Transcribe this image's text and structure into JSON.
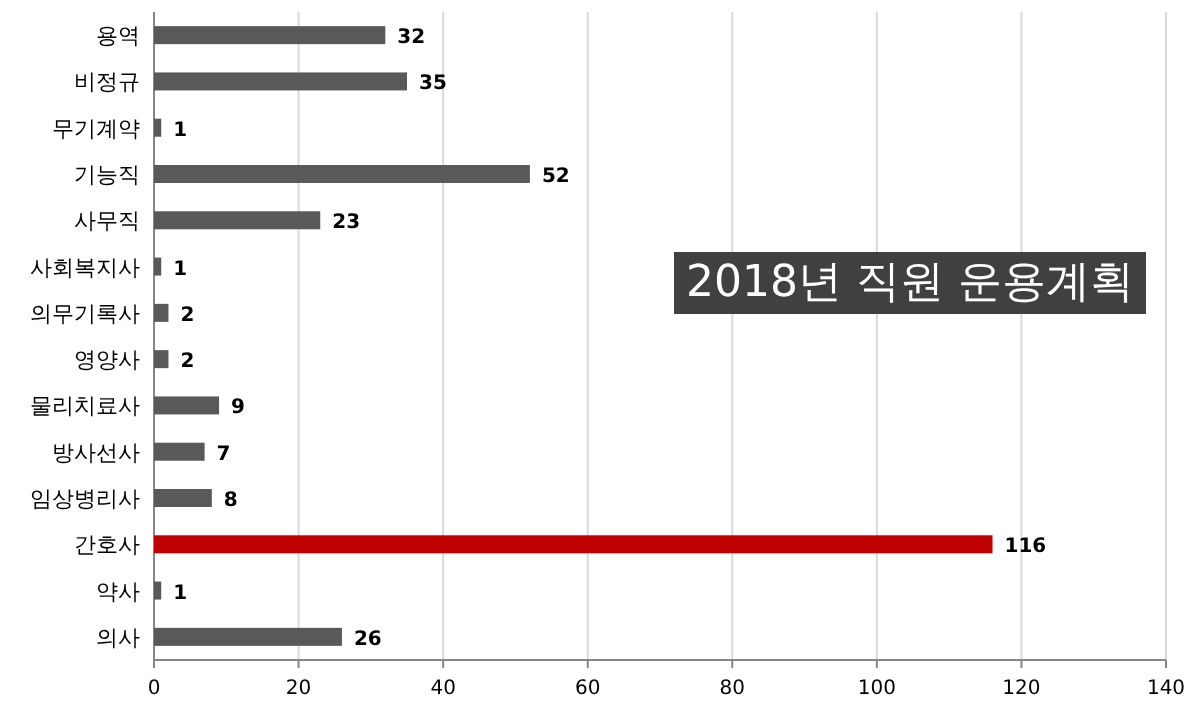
{
  "chart_data": {
    "type": "bar",
    "orientation": "horizontal",
    "title": "2018년 직원 운용계획",
    "categories": [
      "용역",
      "비정규",
      "무기계약",
      "기능직",
      "사무직",
      "사회복지사",
      "의무기록사",
      "영양사",
      "물리치료사",
      "방사선사",
      "임상병리사",
      "간호사",
      "약사",
      "의사"
    ],
    "values": [
      32,
      35,
      1,
      52,
      23,
      1,
      2,
      2,
      9,
      7,
      8,
      116,
      1,
      26
    ],
    "colors": [
      "#595959",
      "#595959",
      "#595959",
      "#595959",
      "#595959",
      "#595959",
      "#595959",
      "#595959",
      "#595959",
      "#595959",
      "#595959",
      "#c00000",
      "#595959",
      "#595959"
    ],
    "xlim": [
      0,
      140
    ],
    "xticks": [
      0,
      20,
      40,
      60,
      80,
      100,
      120,
      140
    ],
    "grid": "x",
    "data_labels": true
  }
}
